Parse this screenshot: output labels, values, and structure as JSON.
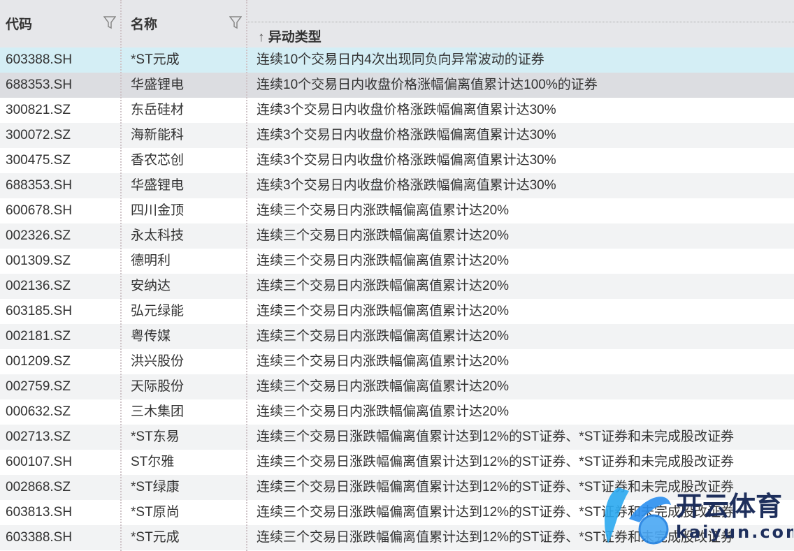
{
  "columns": {
    "code": "代码",
    "name": "名称",
    "type": "异动类型",
    "sort_arrow": "↑"
  },
  "rows": [
    {
      "code": "603388.SH",
      "name": "*ST元成",
      "type": "连续10个交易日内4次出现同负向异常波动的证券"
    },
    {
      "code": "688353.SH",
      "name": "华盛锂电",
      "type": "连续10个交易日内收盘价格涨幅偏离值累计达100%的证券"
    },
    {
      "code": "300821.SZ",
      "name": "东岳硅材",
      "type": "连续3个交易日内收盘价格涨跌幅偏离值累计达30%"
    },
    {
      "code": "300072.SZ",
      "name": "海新能科",
      "type": "连续3个交易日内收盘价格涨跌幅偏离值累计达30%"
    },
    {
      "code": "300475.SZ",
      "name": "香农芯创",
      "type": "连续3个交易日内收盘价格涨跌幅偏离值累计达30%"
    },
    {
      "code": "688353.SH",
      "name": "华盛锂电",
      "type": "连续3个交易日内收盘价格涨跌幅偏离值累计达30%"
    },
    {
      "code": "600678.SH",
      "name": "四川金顶",
      "type": "连续三个交易日内涨跌幅偏离值累计达20%"
    },
    {
      "code": "002326.SZ",
      "name": "永太科技",
      "type": "连续三个交易日内涨跌幅偏离值累计达20%"
    },
    {
      "code": "001309.SZ",
      "name": "德明利",
      "type": "连续三个交易日内涨跌幅偏离值累计达20%"
    },
    {
      "code": "002136.SZ",
      "name": "安纳达",
      "type": "连续三个交易日内涨跌幅偏离值累计达20%"
    },
    {
      "code": "603185.SH",
      "name": "弘元绿能",
      "type": "连续三个交易日内涨跌幅偏离值累计达20%"
    },
    {
      "code": "002181.SZ",
      "name": "粤传媒",
      "type": "连续三个交易日内涨跌幅偏离值累计达20%"
    },
    {
      "code": "001209.SZ",
      "name": "洪兴股份",
      "type": "连续三个交易日内涨跌幅偏离值累计达20%"
    },
    {
      "code": "002759.SZ",
      "name": "天际股份",
      "type": "连续三个交易日内涨跌幅偏离值累计达20%"
    },
    {
      "code": "000632.SZ",
      "name": "三木集团",
      "type": "连续三个交易日内涨跌幅偏离值累计达20%"
    },
    {
      "code": "002713.SZ",
      "name": "*ST东易",
      "type": "连续三个交易日涨跌幅偏离值累计达到12%的ST证券、*ST证券和未完成股改证券"
    },
    {
      "code": "600107.SH",
      "name": "ST尔雅",
      "type": "连续三个交易日涨跌幅偏离值累计达到12%的ST证券、*ST证券和未完成股改证券"
    },
    {
      "code": "002868.SZ",
      "name": "*ST绿康",
      "type": "连续三个交易日涨跌幅偏离值累计达到12%的ST证券、*ST证券和未完成股改证券"
    },
    {
      "code": "603813.SH",
      "name": "*ST原尚",
      "type": "连续三个交易日涨跌幅偏离值累计达到12%的ST证券、*ST证券和未完成股改证券"
    },
    {
      "code": "603388.SH",
      "name": "*ST元成",
      "type": "连续三个交易日涨跌幅偏离值累计达到12%的ST证券、*ST证券和未完成股改证券"
    }
  ],
  "watermark": {
    "brand": "开云体育",
    "domain": "kaiyun.com"
  },
  "colors": {
    "header_bg": "#e6e7ea",
    "selected_row": "#d4eef5",
    "hover_row": "#dcdde1",
    "alt_row": "#f2f3f4"
  }
}
